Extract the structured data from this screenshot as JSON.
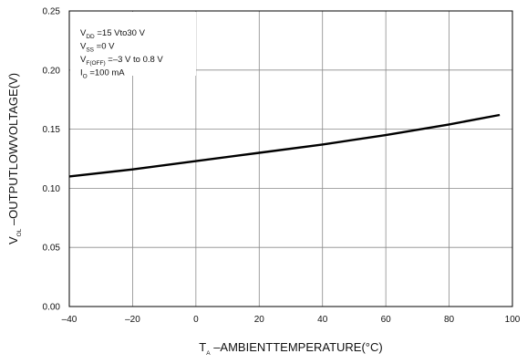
{
  "chart_data": {
    "type": "line",
    "title": "",
    "xlabel": {
      "main": "T",
      "sub": "A",
      "rest": " –AMBIENTTEMPERATURE(°C)"
    },
    "ylabel": {
      "main": "V",
      "sub": "OL",
      "rest": " –OUTPUTLOWVOLTAGE(V)"
    },
    "xlim": [
      -40,
      100
    ],
    "ylim": [
      0,
      0.25
    ],
    "x_ticks": [
      -40,
      -20,
      0,
      20,
      40,
      60,
      80,
      100
    ],
    "x_tick_labels": [
      "–40",
      "–20",
      "0",
      "20",
      "40",
      "60",
      "80",
      "100"
    ],
    "y_ticks": [
      0,
      0.05,
      0.1,
      0.15,
      0.2,
      0.25
    ],
    "y_tick_labels": [
      "0.00",
      "0.05",
      "0.10",
      "0.15",
      "0.20",
      "0.25"
    ],
    "grid": true,
    "series": [
      {
        "x": [
          -40,
          -20,
          0,
          20,
          40,
          60,
          80,
          96
        ],
        "y": [
          0.11,
          0.116,
          0.123,
          0.13,
          0.137,
          0.145,
          0.154,
          0.162
        ]
      }
    ],
    "annotations": [
      {
        "main": "V",
        "sub": "DD",
        "rest": " =15 Vto30 V"
      },
      {
        "main": "V",
        "sub": "SS",
        "rest": " =0  V"
      },
      {
        "main": "V",
        "sub": "F(OFF)",
        "rest": " =–3 V  to  0.8 V"
      },
      {
        "main": "I",
        "sub": "O",
        "rest": " =100  mA"
      }
    ],
    "colors": {
      "line": "#000000",
      "grid": "#8a8a8a",
      "frame": "#000000"
    }
  }
}
